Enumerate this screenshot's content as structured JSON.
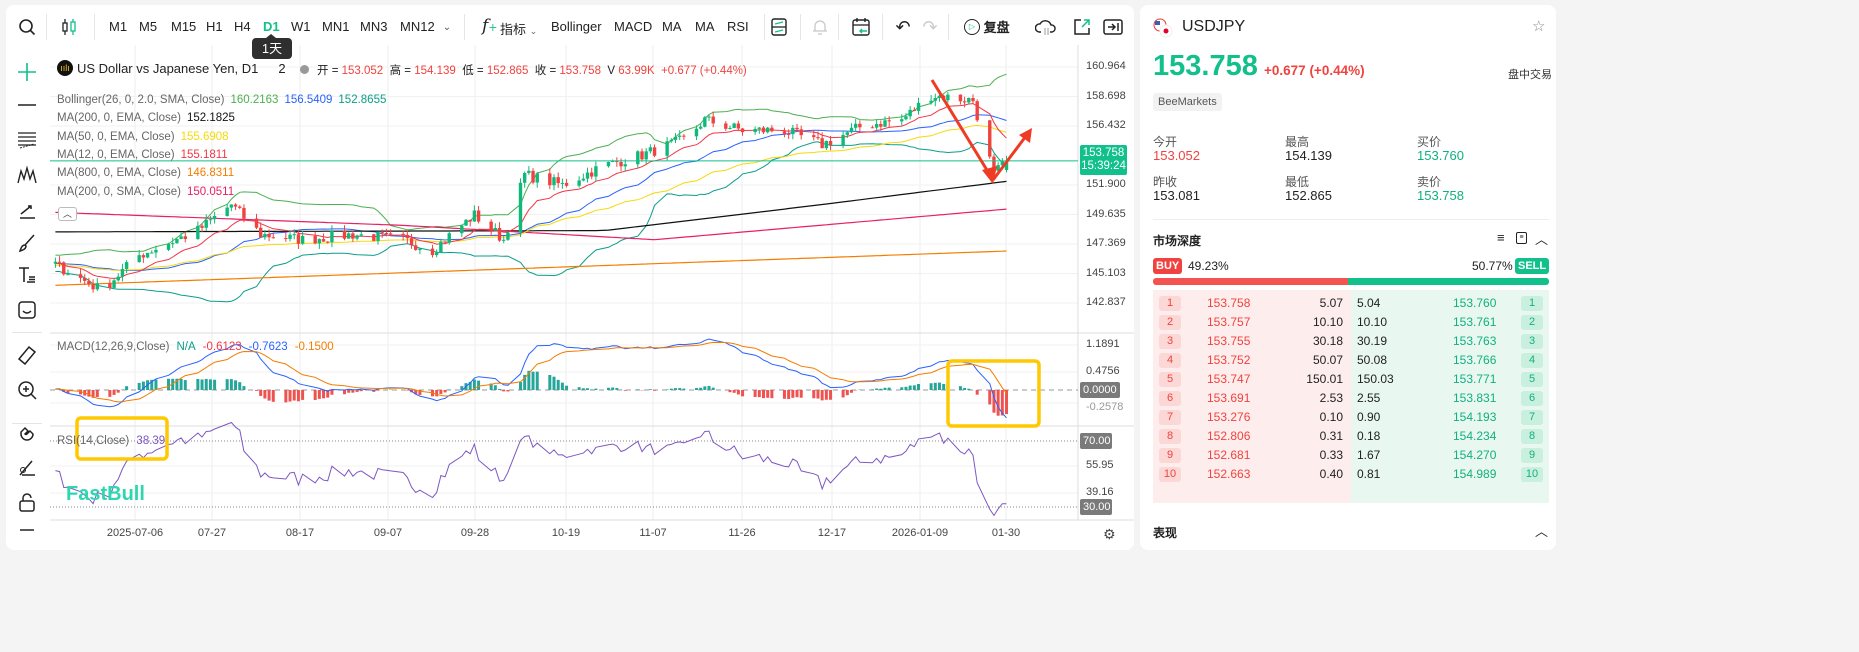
{
  "toolbar": {
    "timeframes": [
      "M1",
      "M5",
      "M15",
      "H1",
      "H4",
      "D1",
      "W1",
      "MN1",
      "MN3",
      "MN12"
    ],
    "active_timeframe": "D1",
    "indicators_label": "指标",
    "indicator_shortcuts": [
      "Bollinger",
      "MACD",
      "MA",
      "MA",
      "RSI"
    ],
    "replay_label": "复盘",
    "tooltip": "1天"
  },
  "legend": {
    "title": "US Dollar vs Japanese Yen, D1",
    "title_suffix": "2",
    "open_label": "开 =",
    "open": "153.052",
    "high_label": "高 =",
    "high": "154.139",
    "low_label": "低 =",
    "low": "152.865",
    "close_label": "收 =",
    "close": "153.758",
    "volume_label": "V",
    "volume": "63.99K",
    "change": "+0.677 (+0.44%)",
    "indicators": [
      {
        "name": "Bollinger(26, 0, 2.0, SMA, Close)",
        "values": [
          "160.2163",
          "156.5409",
          "152.8655"
        ],
        "colors": [
          "#4caf50",
          "#2962ff",
          "#0a9e8a"
        ]
      },
      {
        "name": "MA(200, 0, EMA, Close)",
        "values": [
          "152.1825"
        ],
        "colors": [
          "#111111"
        ]
      },
      {
        "name": "MA(50, 0, EMA, Close)",
        "values": [
          "155.6908"
        ],
        "colors": [
          "#f5d90a"
        ]
      },
      {
        "name": "MA(12, 0, EMA, Close)",
        "values": [
          "155.1811"
        ],
        "colors": [
          "#f23645"
        ]
      },
      {
        "name": "MA(800, 0, EMA, Close)",
        "values": [
          "146.8311"
        ],
        "colors": [
          "#f57c00"
        ]
      },
      {
        "name": "MA(200, 0, SMA, Close)",
        "values": [
          "150.0511"
        ],
        "colors": [
          "#e91e63"
        ]
      }
    ],
    "macd": {
      "name": "MACD(12,26,9,Close)",
      "values": [
        "N/A",
        "-0.6123",
        "-0.7623",
        "-0.1500"
      ],
      "colors": [
        "#0a9e8a",
        "#f23645",
        "#2962ff",
        "#f57c00"
      ]
    },
    "rsi": {
      "name": "RSI(14,Close)",
      "value": "38.39"
    }
  },
  "price_axis": [
    "160.964",
    "158.698",
    "156.432",
    "151.900",
    "149.635",
    "147.369",
    "145.103",
    "142.837"
  ],
  "last_price_tag": {
    "price": "153.758",
    "countdown": "15:39:24"
  },
  "macd_axis": [
    "1.1891",
    "0.4756",
    "0.0000",
    "-0.2578"
  ],
  "rsi_axis": [
    "70.00",
    "55.95",
    "39.16",
    "30.00"
  ],
  "time_axis": [
    "2025-07-06",
    "07-27",
    "08-17",
    "09-07",
    "09-28",
    "10-19",
    "11-07",
    "11-26",
    "12-17",
    "2026-01-09",
    "01-30"
  ],
  "watermark": "FastBull",
  "chart_data": {
    "type": "candlestick",
    "symbol": "USDJPY",
    "timeframe": "D1",
    "close_anchors": [
      [
        "2025-06-17",
        145.8
      ],
      [
        "2025-06-28",
        143.8
      ],
      [
        "2025-07-07",
        146.5
      ],
      [
        "2025-07-21",
        148.4
      ],
      [
        "2025-07-29",
        150.4
      ],
      [
        "2025-08-05",
        148.1
      ],
      [
        "2025-08-15",
        147.7
      ],
      [
        "2025-08-27",
        148.1
      ],
      [
        "2025-09-08",
        147.7
      ],
      [
        "2025-09-15",
        146.9
      ],
      [
        "2025-09-25",
        149.6
      ],
      [
        "2025-10-02",
        147.7
      ],
      [
        "2025-10-07",
        152.7
      ],
      [
        "2025-10-16",
        151.9
      ],
      [
        "2025-10-26",
        153.4
      ],
      [
        "2025-11-04",
        154.2
      ],
      [
        "2025-11-14",
        155.4
      ],
      [
        "2025-11-19",
        156.9
      ],
      [
        "2025-11-28",
        156.1
      ],
      [
        "2025-12-08",
        156.1
      ],
      [
        "2025-12-17",
        155.0
      ],
      [
        "2025-12-27",
        156.5
      ],
      [
        "2026-01-05",
        156.9
      ],
      [
        "2026-01-12",
        158.8
      ],
      [
        "2026-01-22",
        158.4
      ],
      [
        "2026-01-24",
        156.1
      ],
      [
        "2026-01-27",
        152.7
      ],
      [
        "2026-01-30",
        153.758
      ]
    ],
    "last_bar": {
      "open": 153.052,
      "high": 154.139,
      "low": 152.865,
      "close": 153.758
    },
    "ema200": [
      [
        "2025-06-17",
        148.3
      ],
      [
        "2025-10-26",
        148.4
      ],
      [
        "2025-12-17",
        150.4
      ],
      [
        "2026-01-30",
        152.18
      ]
    ],
    "sma200": [
      [
        "2025-06-17",
        149.8
      ],
      [
        "2025-09-08",
        148.8
      ],
      [
        "2025-11-07",
        147.7
      ],
      [
        "2026-01-30",
        150.05
      ]
    ],
    "ema800": [
      [
        "2025-06-17",
        144.2
      ],
      [
        "2026-01-30",
        146.83
      ]
    ],
    "price_range": [
      142.837,
      160.964
    ],
    "rsi_levels": [
      70,
      30
    ]
  },
  "colors": {
    "up": "#0fb97a",
    "down": "#f0433f",
    "accent": "#11c08a",
    "annotation_arrow": "#ef3b24",
    "highlight_box": "#ffc800"
  },
  "quote": {
    "symbol": "USDJPY",
    "price": "153.758",
    "change": "+0.677",
    "change_pct": "(+0.44%)",
    "session": "盘中交易",
    "broker": "BeeMarkets",
    "stats": [
      {
        "label": "今开",
        "value": "153.052",
        "color": "#f0433f"
      },
      {
        "label": "最高",
        "value": "154.139",
        "color": "#222222"
      },
      {
        "label": "买价",
        "value": "153.760",
        "color": "#11b07f"
      },
      {
        "label": "昨收",
        "value": "153.081",
        "color": "#222222"
      },
      {
        "label": "最低",
        "value": "152.865",
        "color": "#222222"
      },
      {
        "label": "卖价",
        "value": "153.758",
        "color": "#11b07f"
      }
    ]
  },
  "depth": {
    "title": "市场深度",
    "buy_label": "BUY",
    "buy_pct": "49.23%",
    "sell_label": "SELL",
    "sell_pct": "50.77%",
    "buy_fraction": 0.4923,
    "rows": [
      {
        "n": "1",
        "bid": "153.758",
        "bid_vol": "5.07",
        "ask_vol": "5.04",
        "ask": "153.760"
      },
      {
        "n": "2",
        "bid": "153.757",
        "bid_vol": "10.10",
        "ask_vol": "10.10",
        "ask": "153.761"
      },
      {
        "n": "3",
        "bid": "153.755",
        "bid_vol": "30.18",
        "ask_vol": "30.19",
        "ask": "153.763"
      },
      {
        "n": "4",
        "bid": "153.752",
        "bid_vol": "50.07",
        "ask_vol": "50.08",
        "ask": "153.766"
      },
      {
        "n": "5",
        "bid": "153.747",
        "bid_vol": "150.01",
        "ask_vol": "150.03",
        "ask": "153.771"
      },
      {
        "n": "6",
        "bid": "153.691",
        "bid_vol": "2.53",
        "ask_vol": "2.55",
        "ask": "153.831"
      },
      {
        "n": "7",
        "bid": "153.276",
        "bid_vol": "0.10",
        "ask_vol": "0.90",
        "ask": "154.193"
      },
      {
        "n": "8",
        "bid": "152.806",
        "bid_vol": "0.31",
        "ask_vol": "0.18",
        "ask": "154.234"
      },
      {
        "n": "9",
        "bid": "152.681",
        "bid_vol": "0.33",
        "ask_vol": "1.67",
        "ask": "154.270"
      },
      {
        "n": "10",
        "bid": "152.663",
        "bid_vol": "0.40",
        "ask_vol": "0.81",
        "ask": "154.989"
      }
    ]
  },
  "performance": {
    "title": "表现"
  }
}
